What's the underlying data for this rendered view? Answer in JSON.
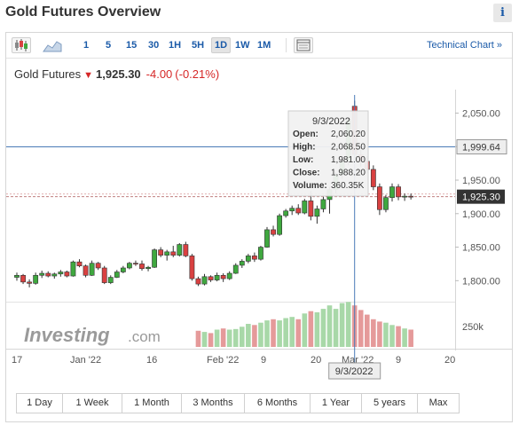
{
  "header": {
    "title": "Gold Futures Overview",
    "info_label": "i"
  },
  "toolbar": {
    "periods": [
      "1",
      "5",
      "15",
      "30",
      "1H",
      "5H",
      "1D",
      "1W",
      "1M"
    ],
    "active_period": "1D",
    "technical_chart_label": "Technical Chart »",
    "icons": [
      "candlestick-icon",
      "area-chart-icon",
      "table-icon"
    ]
  },
  "quote": {
    "name": "Gold Futures",
    "price": "1,925.30",
    "change": "-4.00",
    "change_pct": "(-0.21%)",
    "direction": "down"
  },
  "tooltip": {
    "date": "9/3/2022",
    "open_label": "Open:",
    "open": "2,060.20",
    "high_label": "High:",
    "high": "2,068.50",
    "low_label": "Low:",
    "low": "1,981.00",
    "close_label": "Close:",
    "close": "1,988.20",
    "volume_label": "Volume:",
    "volume": "360.35K"
  },
  "crosshair_label": "9/3/2022",
  "watermark": "Investing.com",
  "price_axis": {
    "ticks": [
      "2,050.00",
      "2,000.00",
      "1,950.00",
      "1,900.00",
      "1,850.00",
      "1,800.00"
    ],
    "hline_label": "1,999.64",
    "last_label": "1,925.30",
    "volume_tick": "250k"
  },
  "time_axis": [
    "17",
    "Jan '22",
    "16",
    "Feb '22",
    "9",
    "20",
    "Mar '22",
    "9",
    "20"
  ],
  "ranges": [
    "1 Day",
    "1 Week",
    "1 Month",
    "3 Months",
    "6 Months",
    "1 Year",
    "5 years",
    "Max"
  ],
  "colors": {
    "up": "#3fa83f",
    "down": "#d94141",
    "vol_up": "#a8d8a8",
    "vol_down": "#e59a9a",
    "link": "#1a5aa8",
    "hline": "#4a7bb7"
  },
  "chart_data": {
    "type": "candlestick",
    "ylim": [
      1770,
      2085
    ],
    "candles": [
      [
        1805,
        1812,
        1800,
        1808
      ],
      [
        1808,
        1810,
        1795,
        1798
      ],
      [
        1798,
        1802,
        1790,
        1796
      ],
      [
        1796,
        1812,
        1794,
        1808
      ],
      [
        1808,
        1815,
        1804,
        1811
      ],
      [
        1811,
        1814,
        1805,
        1807
      ],
      [
        1807,
        1812,
        1803,
        1810
      ],
      [
        1810,
        1816,
        1806,
        1813
      ],
      [
        1813,
        1815,
        1805,
        1807
      ],
      [
        1807,
        1830,
        1806,
        1828
      ],
      [
        1828,
        1832,
        1820,
        1822
      ],
      [
        1822,
        1824,
        1805,
        1808
      ],
      [
        1808,
        1830,
        1807,
        1826
      ],
      [
        1826,
        1828,
        1816,
        1819
      ],
      [
        1819,
        1822,
        1795,
        1797
      ],
      [
        1797,
        1808,
        1795,
        1805
      ],
      [
        1805,
        1816,
        1804,
        1813
      ],
      [
        1813,
        1822,
        1811,
        1819
      ],
      [
        1819,
        1828,
        1817,
        1826
      ],
      [
        1826,
        1830,
        1822,
        1825
      ],
      [
        1825,
        1830,
        1815,
        1818
      ],
      [
        1818,
        1822,
        1814,
        1820
      ],
      [
        1820,
        1848,
        1819,
        1846
      ],
      [
        1846,
        1850,
        1835,
        1838
      ],
      [
        1838,
        1846,
        1830,
        1843
      ],
      [
        1843,
        1852,
        1835,
        1838
      ],
      [
        1838,
        1856,
        1836,
        1854
      ],
      [
        1854,
        1858,
        1835,
        1837
      ],
      [
        1837,
        1840,
        1800,
        1803
      ],
      [
        1803,
        1806,
        1792,
        1795
      ],
      [
        1795,
        1810,
        1793,
        1806
      ],
      [
        1806,
        1808,
        1798,
        1801
      ],
      [
        1801,
        1812,
        1799,
        1808
      ],
      [
        1808,
        1811,
        1798,
        1803
      ],
      [
        1803,
        1814,
        1801,
        1811
      ],
      [
        1811,
        1826,
        1810,
        1823
      ],
      [
        1823,
        1832,
        1819,
        1829
      ],
      [
        1829,
        1840,
        1826,
        1837
      ],
      [
        1837,
        1842,
        1828,
        1832
      ],
      [
        1832,
        1852,
        1830,
        1850
      ],
      [
        1850,
        1880,
        1849,
        1876
      ],
      [
        1876,
        1882,
        1866,
        1869
      ],
      [
        1869,
        1900,
        1867,
        1897
      ],
      [
        1897,
        1907,
        1894,
        1904
      ],
      [
        1904,
        1912,
        1898,
        1908
      ],
      [
        1908,
        1914,
        1898,
        1901
      ],
      [
        1901,
        1922,
        1899,
        1919
      ],
      [
        1919,
        1934,
        1890,
        1896
      ],
      [
        1896,
        1912,
        1885,
        1907
      ],
      [
        1907,
        1925,
        1902,
        1921
      ],
      [
        1921,
        1940,
        1900,
        1936
      ],
      [
        1936,
        1962,
        1930,
        1958
      ],
      [
        1958,
        1982,
        1952,
        1978
      ],
      [
        1978,
        2042,
        1972,
        2040
      ],
      [
        2060.2,
        2068.5,
        1981.0,
        1988.2
      ],
      [
        1988,
        1995,
        1970,
        1978
      ],
      [
        1978,
        1986,
        1960,
        1966
      ],
      [
        1966,
        1972,
        1935,
        1940
      ],
      [
        1940,
        1945,
        1898,
        1906
      ],
      [
        1906,
        1928,
        1902,
        1924
      ],
      [
        1924,
        1945,
        1918,
        1940
      ],
      [
        1940,
        1944,
        1920,
        1925
      ],
      [
        1925,
        1930,
        1919,
        1926
      ],
      [
        1926,
        1930,
        1921,
        1925
      ]
    ],
    "volumes": [
      0,
      0,
      0,
      0,
      0,
      0,
      0,
      0,
      0,
      0,
      0,
      0,
      0,
      0,
      0,
      0,
      0,
      0,
      0,
      0,
      0,
      0,
      0,
      0,
      0,
      0,
      0,
      0,
      0,
      140,
      130,
      120,
      150,
      160,
      150,
      155,
      175,
      200,
      190,
      210,
      230,
      240,
      230,
      250,
      260,
      240,
      290,
      310,
      300,
      330,
      360,
      330,
      380,
      390,
      360,
      320,
      280,
      240,
      220,
      210,
      190,
      180,
      160,
      150
    ],
    "volume_tick": 250
  }
}
